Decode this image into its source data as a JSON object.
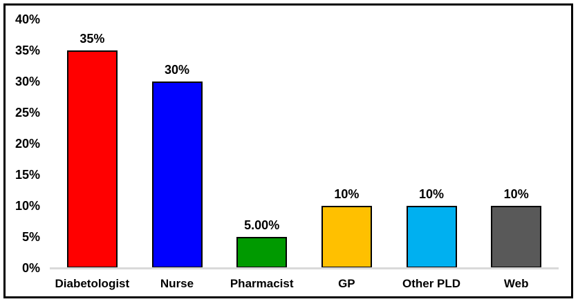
{
  "chart_data": {
    "type": "bar",
    "title": "",
    "xlabel": "",
    "ylabel": "",
    "categories": [
      "Diabetologist",
      "Nurse",
      "Pharmacist",
      "GP",
      "Other PLD",
      "Web"
    ],
    "values": [
      35,
      30,
      5,
      10,
      10,
      10
    ],
    "data_labels": [
      "35%",
      "30%",
      "5.00%",
      "10%",
      "10%",
      "10%"
    ],
    "bar_colors": [
      "#ff0000",
      "#0000ff",
      "#009a00",
      "#ffc000",
      "#00b0f0",
      "#595959"
    ],
    "ylim": [
      0,
      40
    ],
    "ytick_values": [
      0,
      5,
      10,
      15,
      20,
      25,
      30,
      35,
      40
    ],
    "ytick_labels": [
      "0%",
      "5%",
      "10%",
      "15%",
      "20%",
      "25%",
      "30%",
      "35%",
      "40%"
    ],
    "grid": false,
    "legend": false,
    "colors": {
      "bar_border": "#000000",
      "axis_line": "#d9d9d9",
      "chart_border": "#000000",
      "text": "#000000",
      "background": "#ffffff"
    }
  }
}
